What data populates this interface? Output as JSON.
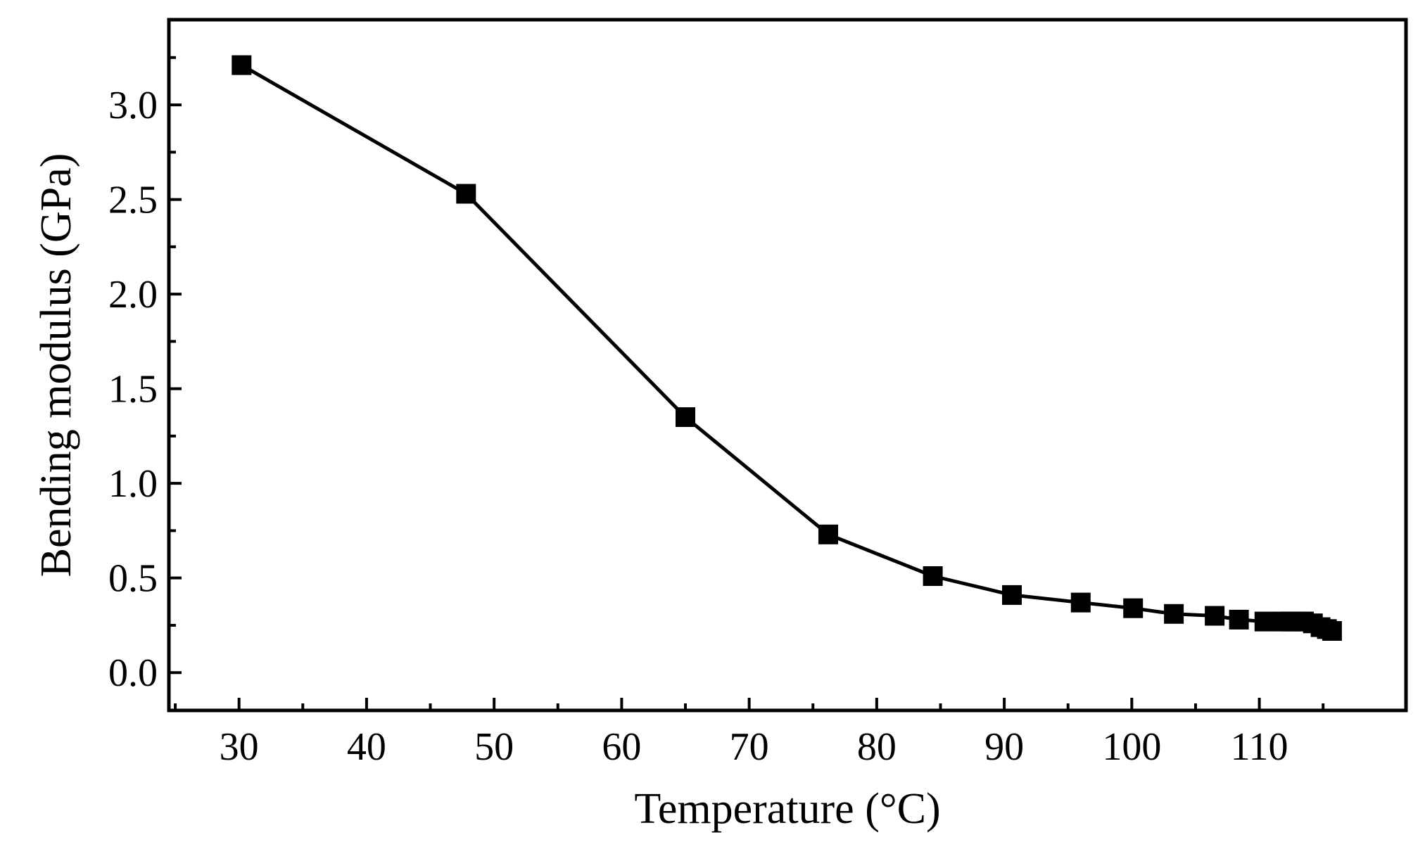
{
  "chart_data": {
    "type": "line",
    "title": "",
    "xlabel": "Temperature (°C)",
    "ylabel": "Bending modulus (GPa)",
    "xlim": [
      24.5,
      121.5
    ],
    "ylim": [
      -0.2,
      3.45
    ],
    "xticks": [
      30,
      40,
      50,
      60,
      70,
      80,
      90,
      100,
      110
    ],
    "xtick_labels": [
      "30",
      "40",
      "50",
      "60",
      "70",
      "80",
      "90",
      "100",
      "110"
    ],
    "yticks": [
      0.0,
      0.5,
      1.0,
      1.5,
      2.0,
      2.5,
      3.0
    ],
    "ytick_labels": [
      "0.0",
      "0.5",
      "1.0",
      "1.5",
      "2.0",
      "2.5",
      "3.0"
    ],
    "grid": false,
    "series": [
      {
        "name": "Bending modulus",
        "marker": "square",
        "color": "#000000",
        "x": [
          30.2,
          47.8,
          65.0,
          76.2,
          84.4,
          90.6,
          96.0,
          100.1,
          103.3,
          106.5,
          108.4,
          110.4,
          111.9,
          112.5,
          113.0,
          113.5,
          114.2,
          114.8,
          115.3,
          115.7
        ],
        "y": [
          3.21,
          2.53,
          1.35,
          0.73,
          0.51,
          0.41,
          0.37,
          0.34,
          0.31,
          0.3,
          0.28,
          0.27,
          0.27,
          0.27,
          0.27,
          0.27,
          0.26,
          0.24,
          0.23,
          0.22
        ]
      }
    ]
  }
}
